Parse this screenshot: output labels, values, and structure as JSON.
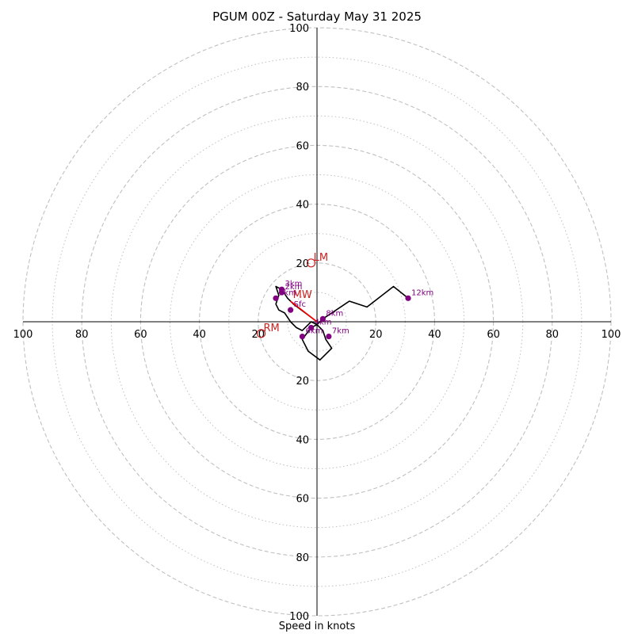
{
  "title": "PGUM 00Z - Saturday May 31 2025",
  "xlabel": "Speed in knots",
  "chart_data": {
    "type": "hodograph",
    "title": "PGUM 00Z - Saturday May 31 2025",
    "xlabel": "Speed in knots",
    "range": [
      -100,
      100
    ],
    "grid": true,
    "major_rings": [
      20,
      40,
      60,
      80,
      100
    ],
    "minor_rings": [
      10,
      30,
      50,
      70,
      90
    ],
    "tick_labels": [
      "100",
      "80",
      "60",
      "40",
      "20",
      "20",
      "40",
      "60",
      "80",
      "100"
    ],
    "colors": {
      "trace": "#000000",
      "mean_wind": "#ff0000",
      "height_marker": "#800080",
      "motion": "#cc2222",
      "grid": "#c0c0c0"
    },
    "trace": [
      {
        "u": 0,
        "v": 0
      },
      {
        "u": -4,
        "v": 3
      },
      {
        "u": -8,
        "v": 6
      },
      {
        "u": -10,
        "v": 8
      },
      {
        "u": -12,
        "v": 11
      },
      {
        "u": -14,
        "v": 12
      },
      {
        "u": -13,
        "v": 9
      },
      {
        "u": -14,
        "v": 6
      },
      {
        "u": -13,
        "v": 4
      },
      {
        "u": -11,
        "v": 3
      },
      {
        "u": -9,
        "v": 0
      },
      {
        "u": -7,
        "v": -2
      },
      {
        "u": -5,
        "v": -3
      },
      {
        "u": -3,
        "v": -1
      },
      {
        "u": -2,
        "v": 0
      },
      {
        "u": 0,
        "v": -1
      },
      {
        "u": 2,
        "v": -3
      },
      {
        "u": 3,
        "v": -6
      },
      {
        "u": 5,
        "v": -9
      },
      {
        "u": 1,
        "v": -13
      },
      {
        "u": -3,
        "v": -10
      },
      {
        "u": -5,
        "v": -6
      },
      {
        "u": -2,
        "v": -2
      },
      {
        "u": 0,
        "v": -1
      },
      {
        "u": 2,
        "v": 1
      },
      {
        "u": 5,
        "v": 3
      },
      {
        "u": 11,
        "v": 7
      },
      {
        "u": 17,
        "v": 5
      },
      {
        "u": 26,
        "v": 12
      },
      {
        "u": 31,
        "v": 8
      }
    ],
    "height_markers": [
      {
        "label": "Sfc",
        "u": -9,
        "v": 4
      },
      {
        "label": "1km",
        "u": -14,
        "v": 8
      },
      {
        "label": "2km",
        "u": -12,
        "v": 10
      },
      {
        "label": "3km",
        "u": -12,
        "v": 11
      },
      {
        "label": "4km",
        "u": -2,
        "v": -2
      },
      {
        "label": "6km",
        "u": -5,
        "v": -5
      },
      {
        "label": "7km",
        "u": 4,
        "v": -5
      },
      {
        "label": "8km",
        "u": 2,
        "v": 1
      },
      {
        "label": "12km",
        "u": 31,
        "v": 8
      }
    ],
    "mean_wind": {
      "label": "MW",
      "u": -9,
      "v": 7
    },
    "storm_motion": [
      {
        "label": "LM",
        "u": -2,
        "v": 20
      },
      {
        "label": "RM",
        "u": -19,
        "v": -4
      }
    ]
  }
}
